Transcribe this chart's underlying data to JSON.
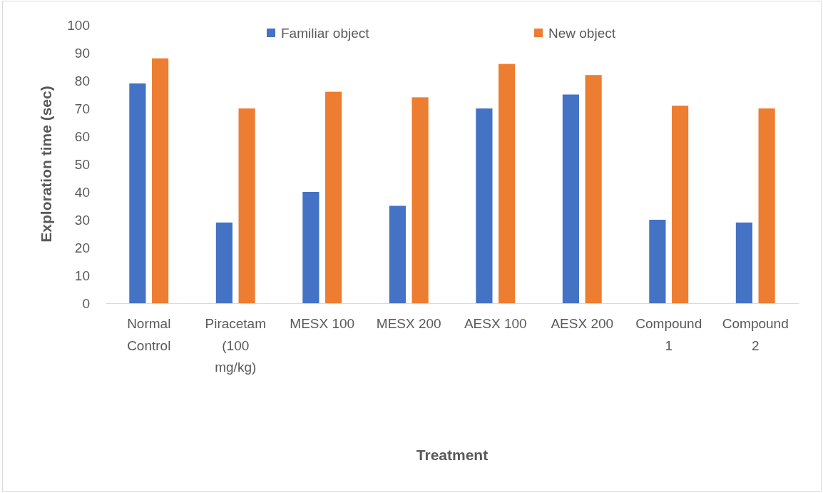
{
  "chart_data": {
    "type": "bar",
    "xlabel": "Treatment",
    "ylabel": "Exploration time (sec)",
    "categories": [
      "Normal Control",
      "Piracetam (100 mg/kg)",
      "MESX 100",
      "MESX 200",
      "AESX 100",
      "AESX 200",
      "Compound 1",
      "Compound 2"
    ],
    "series": [
      {
        "name": "Familiar object",
        "color": "#4472c4",
        "values": [
          79,
          29,
          40,
          35,
          70,
          75,
          30,
          29
        ]
      },
      {
        "name": "New object",
        "color": "#ed7d31",
        "values": [
          88,
          70,
          76,
          74,
          86,
          82,
          71,
          70
        ]
      }
    ],
    "ylim": [
      0,
      100
    ],
    "yticks": [
      0,
      10,
      20,
      30,
      40,
      50,
      60,
      70,
      80,
      90,
      100
    ],
    "grid": false,
    "legend": "top"
  }
}
